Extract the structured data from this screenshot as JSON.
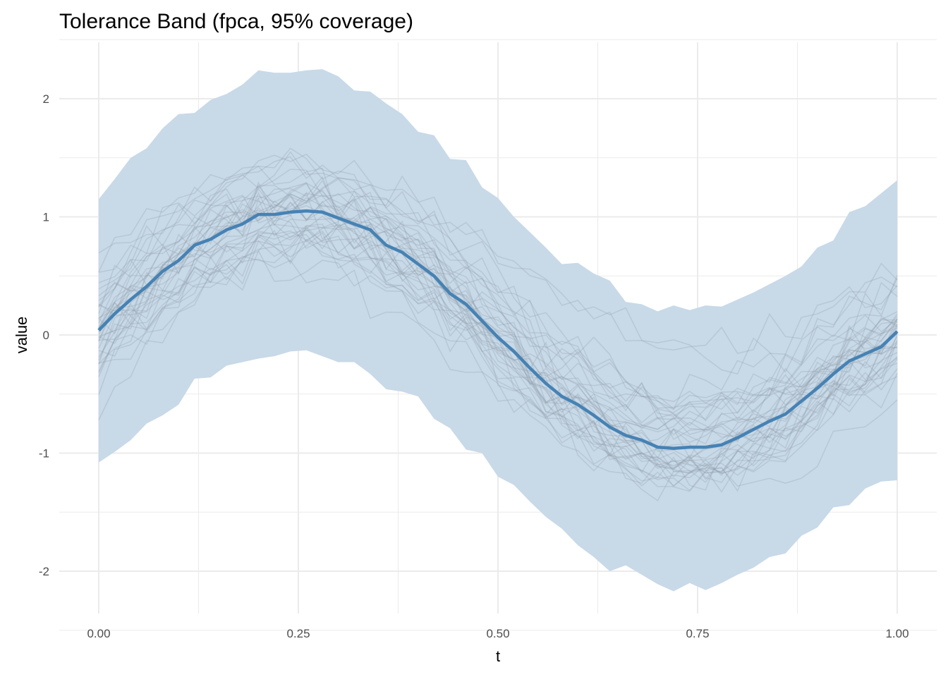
{
  "chart_data": {
    "type": "line",
    "title": "Tolerance Band (fpca, 95% coverage)",
    "xlabel": "t",
    "ylabel": "value",
    "xlim": [
      -0.08,
      1.04
    ],
    "ylim": [
      -2.35,
      2.5
    ],
    "grid": true,
    "x_ticks": [
      0,
      0.25,
      0.5,
      0.75,
      1
    ],
    "x_tick_labels": [
      "0.00",
      "0.25",
      "0.50",
      "0.75",
      "1.00"
    ],
    "y_ticks": [
      -2,
      -1,
      0,
      1,
      2
    ],
    "y_tick_labels": [
      "-2",
      "-1",
      "0",
      "1",
      "2"
    ],
    "n_points": 51,
    "mean": [
      0.04,
      0.18,
      0.3,
      0.41,
      0.54,
      0.63,
      0.76,
      0.81,
      0.89,
      0.94,
      1.02,
      1.02,
      1.04,
      1.05,
      1.04,
      0.99,
      0.94,
      0.89,
      0.76,
      0.7,
      0.6,
      0.5,
      0.35,
      0.26,
      0.12,
      -0.02,
      -0.14,
      -0.28,
      -0.41,
      -0.52,
      -0.59,
      -0.68,
      -0.78,
      -0.85,
      -0.89,
      -0.95,
      -0.96,
      -0.95,
      -0.95,
      -0.93,
      -0.87,
      -0.8,
      -0.73,
      -0.67,
      -0.56,
      -0.45,
      -0.33,
      -0.22,
      -0.16,
      -0.1,
      0.03
    ],
    "upper": [
      1.15,
      1.32,
      1.5,
      1.58,
      1.75,
      1.87,
      1.88,
      1.99,
      2.04,
      2.12,
      2.24,
      2.22,
      2.22,
      2.24,
      2.25,
      2.19,
      2.07,
      2.06,
      1.96,
      1.87,
      1.72,
      1.69,
      1.49,
      1.48,
      1.25,
      1.16,
      1.0,
      0.87,
      0.74,
      0.6,
      0.61,
      0.52,
      0.46,
      0.28,
      0.26,
      0.2,
      0.25,
      0.21,
      0.25,
      0.24,
      0.3,
      0.36,
      0.43,
      0.5,
      0.58,
      0.74,
      0.8,
      1.04,
      1.09,
      1.2,
      1.31
    ],
    "lower": [
      -1.08,
      -0.99,
      -0.89,
      -0.75,
      -0.68,
      -0.59,
      -0.37,
      -0.36,
      -0.26,
      -0.23,
      -0.2,
      -0.18,
      -0.14,
      -0.13,
      -0.18,
      -0.23,
      -0.23,
      -0.33,
      -0.46,
      -0.48,
      -0.52,
      -0.71,
      -0.79,
      -0.97,
      -1.0,
      -1.2,
      -1.27,
      -1.41,
      -1.54,
      -1.64,
      -1.78,
      -1.88,
      -2.0,
      -1.95,
      -2.03,
      -2.11,
      -2.17,
      -2.1,
      -2.16,
      -2.1,
      -2.03,
      -1.97,
      -1.88,
      -1.85,
      -1.7,
      -1.63,
      -1.46,
      -1.44,
      -1.3,
      -1.24,
      -1.23
    ],
    "sample_curves": {
      "count": 40
    },
    "colors": {
      "band": "#c8d9e8",
      "mean": "#4682b4",
      "samples": "#8c99a6",
      "grid": "#ebebeb"
    }
  }
}
